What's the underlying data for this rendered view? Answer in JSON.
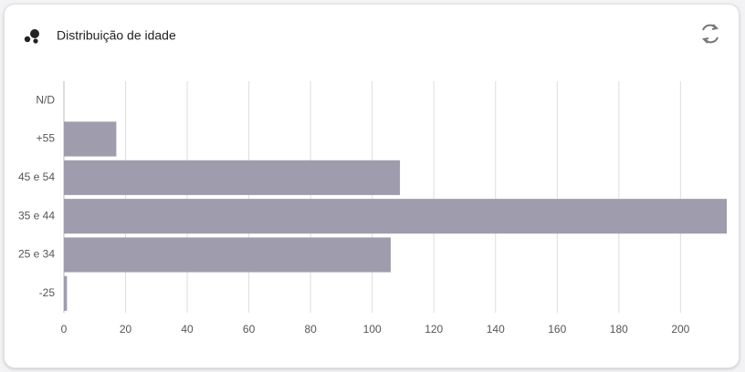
{
  "chart_data": {
    "type": "bar",
    "orientation": "horizontal",
    "title": "Distribuição de idade",
    "categories": [
      "N/D",
      "+55",
      "45 e 54",
      "35 e 44",
      "25 e 34",
      "-25"
    ],
    "values": [
      0,
      17,
      109,
      215,
      106,
      1
    ],
    "color": "#9f9cad",
    "xlim": [
      0,
      215
    ],
    "xticks": [
      0,
      20,
      40,
      60,
      80,
      100,
      120,
      140,
      160,
      180,
      200
    ],
    "grid": true
  }
}
